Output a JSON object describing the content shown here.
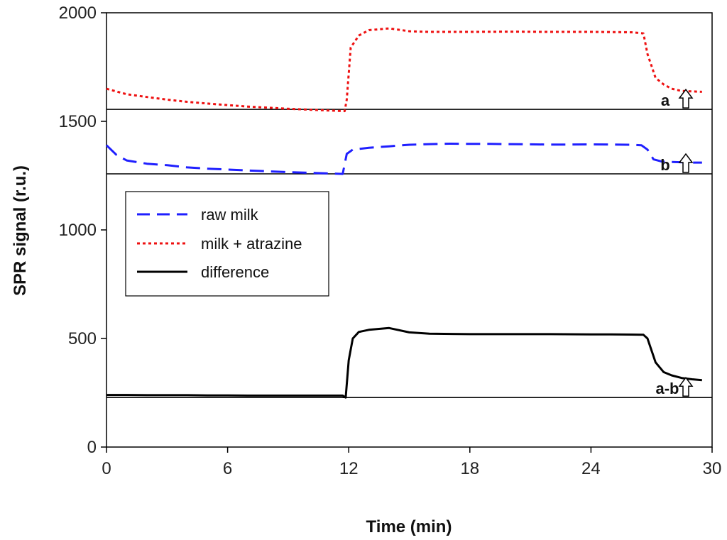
{
  "chart_data": {
    "type": "line",
    "title": "",
    "xlabel": "Time (min)",
    "ylabel": "SPR signal (r.u.)",
    "xlim": [
      0,
      30
    ],
    "ylim": [
      0,
      2000
    ],
    "xticks": [
      0,
      6,
      12,
      18,
      24,
      30
    ],
    "yticks": [
      0,
      500,
      1000,
      1500,
      2000
    ],
    "legend_position": "upper-left",
    "series": [
      {
        "name": "raw milk",
        "color": "#1f1fff",
        "style": "dashed",
        "points": [
          [
            0,
            1390
          ],
          [
            0.5,
            1345
          ],
          [
            1,
            1320
          ],
          [
            2,
            1305
          ],
          [
            3,
            1298
          ],
          [
            4,
            1288
          ],
          [
            5,
            1282
          ],
          [
            6,
            1278
          ],
          [
            7,
            1274
          ],
          [
            8,
            1270
          ],
          [
            9,
            1266
          ],
          [
            10,
            1263
          ],
          [
            11,
            1260
          ],
          [
            11.7,
            1258
          ],
          [
            11.9,
            1350
          ],
          [
            12.2,
            1370
          ],
          [
            13,
            1378
          ],
          [
            14,
            1385
          ],
          [
            15,
            1392
          ],
          [
            16,
            1395
          ],
          [
            17,
            1397
          ],
          [
            18,
            1396
          ],
          [
            19,
            1396
          ],
          [
            20,
            1395
          ],
          [
            21,
            1394
          ],
          [
            22,
            1393
          ],
          [
            23,
            1393
          ],
          [
            24,
            1394
          ],
          [
            25,
            1393
          ],
          [
            26,
            1392
          ],
          [
            26.5,
            1390
          ],
          [
            26.8,
            1370
          ],
          [
            27.1,
            1325
          ],
          [
            27.5,
            1315
          ],
          [
            28,
            1313
          ],
          [
            29,
            1310
          ],
          [
            29.5,
            1310
          ]
        ]
      },
      {
        "name": "milk + atrazine",
        "color": "#ee1111",
        "style": "dotted",
        "points": [
          [
            0,
            1650
          ],
          [
            1,
            1625
          ],
          [
            2,
            1612
          ],
          [
            3,
            1600
          ],
          [
            4,
            1590
          ],
          [
            5,
            1582
          ],
          [
            6,
            1575
          ],
          [
            7,
            1568
          ],
          [
            8,
            1563
          ],
          [
            9,
            1558
          ],
          [
            10,
            1554
          ],
          [
            11,
            1550
          ],
          [
            11.8,
            1547
          ],
          [
            11.9,
            1600
          ],
          [
            12.1,
            1840
          ],
          [
            12.5,
            1895
          ],
          [
            13,
            1920
          ],
          [
            14,
            1928
          ],
          [
            15,
            1915
          ],
          [
            16,
            1912
          ],
          [
            18,
            1912
          ],
          [
            20,
            1913
          ],
          [
            22,
            1912
          ],
          [
            24,
            1912
          ],
          [
            25,
            1911
          ],
          [
            26,
            1910
          ],
          [
            26.6,
            1905
          ],
          [
            26.8,
            1810
          ],
          [
            27.2,
            1700
          ],
          [
            27.6,
            1670
          ],
          [
            28,
            1650
          ],
          [
            28.5,
            1640
          ],
          [
            29,
            1638
          ],
          [
            29.5,
            1636
          ]
        ]
      },
      {
        "name": "difference",
        "color": "#000000",
        "style": "solid",
        "points": [
          [
            0,
            240
          ],
          [
            1,
            240
          ],
          [
            2,
            239
          ],
          [
            3,
            239
          ],
          [
            4,
            239
          ],
          [
            5,
            238
          ],
          [
            6,
            238
          ],
          [
            7,
            237
          ],
          [
            8,
            237
          ],
          [
            9,
            237
          ],
          [
            10,
            237
          ],
          [
            11,
            237
          ],
          [
            11.7,
            237
          ],
          [
            11.85,
            228
          ],
          [
            12,
            400
          ],
          [
            12.2,
            500
          ],
          [
            12.5,
            530
          ],
          [
            13,
            540
          ],
          [
            14,
            548
          ],
          [
            15,
            528
          ],
          [
            16,
            522
          ],
          [
            18,
            520
          ],
          [
            20,
            520
          ],
          [
            22,
            520
          ],
          [
            24,
            519
          ],
          [
            25,
            519
          ],
          [
            26,
            518
          ],
          [
            26.6,
            517
          ],
          [
            26.8,
            500
          ],
          [
            27.2,
            390
          ],
          [
            27.6,
            345
          ],
          [
            28,
            330
          ],
          [
            28.5,
            318
          ],
          [
            29,
            312
          ],
          [
            29.5,
            308
          ]
        ]
      }
    ],
    "baselines": [
      {
        "label": "a",
        "y": 1555
      },
      {
        "label": "b",
        "y": 1258
      },
      {
        "label": "a-b",
        "y": 228
      }
    ]
  }
}
